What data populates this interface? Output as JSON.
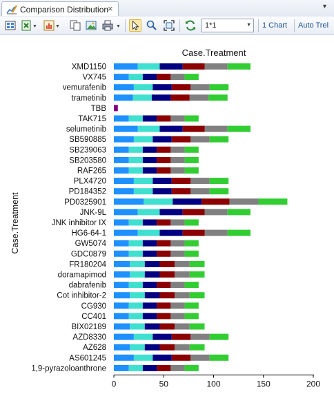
{
  "tab": {
    "label": "Comparison Distribution",
    "close_glyph": "×",
    "menu_glyph": "▼"
  },
  "toolbar": {
    "combo_value": "1*1",
    "chart_link": "1 Chart",
    "auto_link": "Auto Trel",
    "icons": [
      "layout-icon",
      "excel-icon",
      "chart-type-icon",
      "copy-icon",
      "image-icon",
      "print-icon",
      "select-pointer-icon",
      "zoom-icon",
      "fit-icon",
      "refresh-icon"
    ]
  },
  "colors": {
    "segments": [
      "#1e90ff",
      "#40e0d0",
      "#000080",
      "#8b0000",
      "#808080",
      "#32cd32"
    ],
    "single": "#800080",
    "axis": "#000000"
  },
  "chart_data": {
    "type": "bar",
    "orientation": "horizontal",
    "stacked": true,
    "title": "Case.Treatment",
    "ylabel": "Case.Treatment",
    "xlabel": "",
    "xlim": [
      0,
      200
    ],
    "xticks": [
      "0",
      "50",
      "100",
      "150",
      "200"
    ],
    "grid": false,
    "legend": "none",
    "categories": [
      "XMD1150",
      "VX745",
      "vemurafenib",
      "trametinib",
      "TBB",
      "TAK715",
      "selumetinib",
      "SB590885",
      "SB239063",
      "SB203580",
      "RAF265",
      "PLX4720",
      "PD184352",
      "PD0325901",
      "JNK-9L",
      "JNK inhibitor IX",
      "HG6-64-1",
      "GW5074",
      "GDC0879",
      "FR180204",
      "doramapimod",
      "dabrafenib",
      "Cot inhibitor-2",
      "CG930",
      "CC401",
      "BIX02189",
      "AZD8330",
      "AZ628",
      "AS601245",
      "1,9-pyrazoloanthrone"
    ],
    "segment_values": [
      [
        24,
        22,
        23,
        22,
        23,
        23
      ],
      [
        15,
        14,
        14,
        14,
        14,
        14
      ],
      [
        20,
        19,
        19,
        19,
        19,
        19
      ],
      [
        19,
        19,
        19,
        19,
        19,
        19
      ],
      [
        4
      ],
      [
        15,
        14,
        14,
        14,
        14,
        14
      ],
      [
        24,
        22,
        23,
        22,
        23,
        23
      ],
      [
        20,
        19,
        19,
        19,
        19,
        19
      ],
      [
        15,
        14,
        14,
        14,
        14,
        14
      ],
      [
        15,
        14,
        14,
        14,
        14,
        14
      ],
      [
        15,
        14,
        14,
        14,
        14,
        14
      ],
      [
        20,
        19,
        19,
        19,
        19,
        19
      ],
      [
        20,
        19,
        19,
        19,
        19,
        19
      ],
      [
        30,
        29,
        29,
        28,
        29,
        29
      ],
      [
        24,
        22,
        23,
        22,
        23,
        23
      ],
      [
        15,
        14,
        14,
        14,
        14,
        14
      ],
      [
        24,
        22,
        23,
        22,
        23,
        23
      ],
      [
        15,
        14,
        14,
        14,
        14,
        14
      ],
      [
        15,
        14,
        14,
        14,
        14,
        14
      ],
      [
        16,
        15,
        15,
        15,
        15,
        15
      ],
      [
        16,
        15,
        15,
        15,
        15,
        15
      ],
      [
        15,
        14,
        14,
        14,
        14,
        14
      ],
      [
        16,
        15,
        15,
        15,
        15,
        15
      ],
      [
        15,
        14,
        14,
        14,
        14,
        14
      ],
      [
        15,
        14,
        14,
        14,
        14,
        14
      ],
      [
        16,
        15,
        15,
        15,
        15,
        15
      ],
      [
        20,
        19,
        19,
        19,
        19,
        19
      ],
      [
        16,
        15,
        15,
        15,
        15,
        15
      ],
      [
        20,
        19,
        19,
        19,
        19,
        19
      ],
      [
        15,
        14,
        14,
        14,
        14,
        14
      ]
    ]
  }
}
